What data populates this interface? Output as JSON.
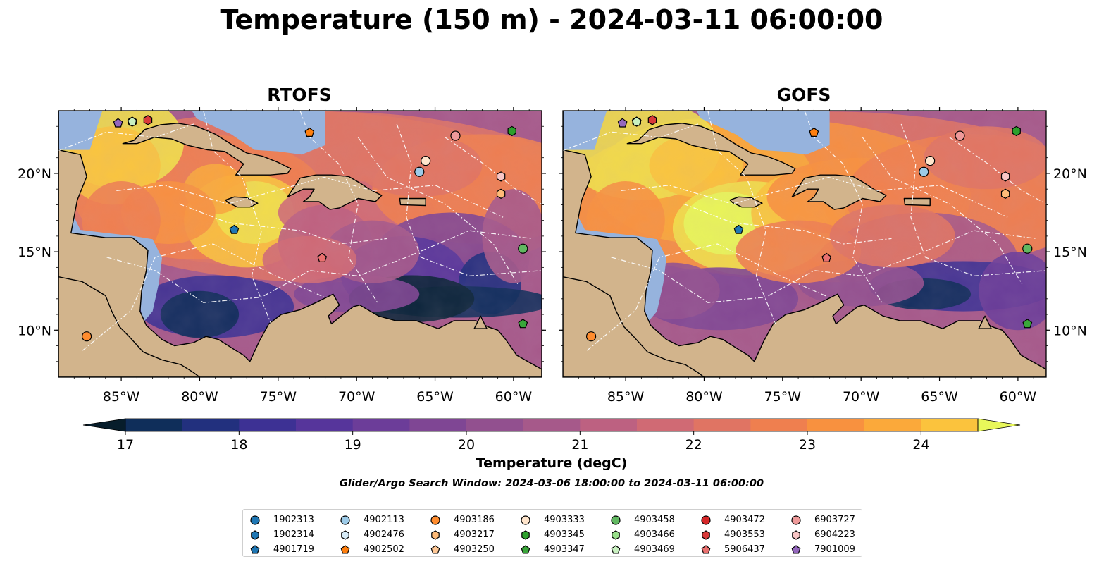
{
  "title": "Temperature (150 m) - 2024-03-11 06:00:00",
  "panels": [
    {
      "title": "RTOFS"
    },
    {
      "title": "GOFS"
    }
  ],
  "lon_ticks": [
    "85°W",
    "80°W",
    "75°W",
    "70°W",
    "65°W",
    "60°W"
  ],
  "lat_ticks": [
    "20°N",
    "15°N",
    "10°N"
  ],
  "colorbar": {
    "label": "Temperature (degC)",
    "ticks": [
      "17",
      "18",
      "19",
      "20",
      "21",
      "22",
      "23",
      "24"
    ],
    "min": 16.75,
    "max": 24.5,
    "colors": [
      "#0b2537",
      "#0f2e5a",
      "#22307e",
      "#3d3194",
      "#56359b",
      "#6c3d99",
      "#7f4694",
      "#92508f",
      "#a6598a",
      "#bd6181",
      "#d06a74",
      "#e07463",
      "#ef7f4f",
      "#f8913f",
      "#fba93a",
      "#fbc33d",
      "#f1e04b",
      "#e8f75a"
    ],
    "under_color": "#071d2b",
    "over_color": "#e8f75a"
  },
  "search_window": "Glider/Argo Search Window: 2024-03-06 18:00:00 to 2024-03-11 06:00:00",
  "colors": {
    "land": "#d2b48c",
    "shelf": "#96b3dd",
    "deep_dark": "#072030",
    "coast": "#000000",
    "track": "#ffffff"
  },
  "legend": [
    [
      {
        "id": "1902313",
        "color": "#1f77b4",
        "shape": "circle"
      },
      {
        "id": "1902314",
        "color": "#1f77b4",
        "shape": "hexagon"
      },
      {
        "id": "4901719",
        "color": "#1f77b4",
        "shape": "pentagon"
      }
    ],
    [
      {
        "id": "4902113",
        "color": "#9dcbe8",
        "shape": "circle"
      },
      {
        "id": "4902476",
        "color": "#d6ebf7",
        "shape": "hexagon"
      },
      {
        "id": "4902502",
        "color": "#ff7f0e",
        "shape": "pentagon"
      }
    ],
    [
      {
        "id": "4903186",
        "color": "#ff8c2e",
        "shape": "circle"
      },
      {
        "id": "4903217",
        "color": "#ffbb78",
        "shape": "hexagon"
      },
      {
        "id": "4903250",
        "color": "#ffc896",
        "shape": "pentagon"
      }
    ],
    [
      {
        "id": "4903333",
        "color": "#ffe5cc",
        "shape": "circle"
      },
      {
        "id": "4903345",
        "color": "#2ca02c",
        "shape": "hexagon"
      },
      {
        "id": "4903347",
        "color": "#3aa63a",
        "shape": "pentagon"
      }
    ],
    [
      {
        "id": "4903458",
        "color": "#61b861",
        "shape": "circle"
      },
      {
        "id": "4903466",
        "color": "#98df8a",
        "shape": "hexagon"
      },
      {
        "id": "4903469",
        "color": "#c8f0c0",
        "shape": "pentagon"
      }
    ],
    [
      {
        "id": "4903472",
        "color": "#d62728",
        "shape": "circle"
      },
      {
        "id": "4903553",
        "color": "#d93a3a",
        "shape": "hexagon"
      },
      {
        "id": "5906437",
        "color": "#e9706f",
        "shape": "pentagon"
      }
    ],
    [
      {
        "id": "6903727",
        "color": "#ef9a9a",
        "shape": "circle"
      },
      {
        "id": "6904223",
        "color": "#f9c6c6",
        "shape": "hexagon"
      },
      {
        "id": "7901009",
        "color": "#9467bd",
        "shape": "pentagon"
      }
    ]
  ],
  "floats": [
    {
      "id": "4901719",
      "lon": -77.8,
      "lat": 16.4
    },
    {
      "id": "4902113",
      "lon": -66.0,
      "lat": 20.1
    },
    {
      "id": "4902502",
      "lon": -73.0,
      "lat": 22.6
    },
    {
      "id": "4903186",
      "lon": -87.2,
      "lat": 9.6
    },
    {
      "id": "4903217",
      "lon": -60.8,
      "lat": 18.7
    },
    {
      "id": "4903333",
      "lon": -65.6,
      "lat": 20.8
    },
    {
      "id": "4903345",
      "lon": -60.1,
      "lat": 22.7
    },
    {
      "id": "4903347",
      "lon": -59.4,
      "lat": 10.4
    },
    {
      "id": "4903458",
      "lon": -59.4,
      "lat": 15.2
    },
    {
      "id": "4903466",
      "lon": -84.3,
      "lat": 23.3
    },
    {
      "id": "4903469",
      "lon": -84.3,
      "lat": 23.3
    },
    {
      "id": "4903553",
      "lon": -83.3,
      "lat": 23.4
    },
    {
      "id": "5906437",
      "lon": -72.2,
      "lat": 14.6
    },
    {
      "id": "6903727",
      "lon": -63.7,
      "lat": 22.4
    },
    {
      "id": "6904223",
      "lon": -60.8,
      "lat": 19.8
    },
    {
      "id": "7901009",
      "lon": -85.2,
      "lat": 23.2
    }
  ]
}
